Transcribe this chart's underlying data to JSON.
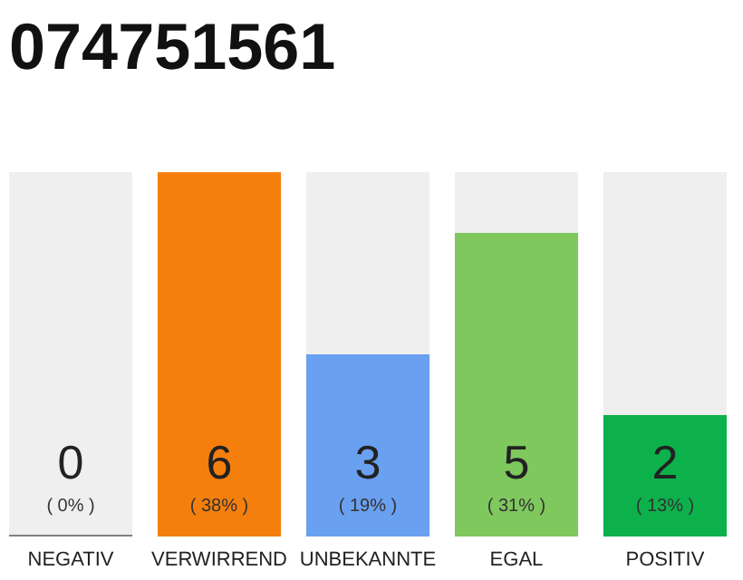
{
  "chart_data": {
    "type": "bar",
    "title": "074751561",
    "categories": [
      "NEGATIV",
      "VERWIRREND",
      "UNBEKANNTE",
      "EGAL",
      "POSITIV"
    ],
    "values": [
      0,
      6,
      3,
      5,
      2
    ],
    "colors": [
      "#808080",
      "#f57f0c",
      "#6aa0f0",
      "#7ec85e",
      "#0db14b"
    ],
    "ylim": [
      0,
      6
    ],
    "data_labels": true,
    "annotations": [
      "( 0% )",
      "( 38% )",
      "( 19% )",
      "( 31% )",
      "( 13% )"
    ]
  }
}
